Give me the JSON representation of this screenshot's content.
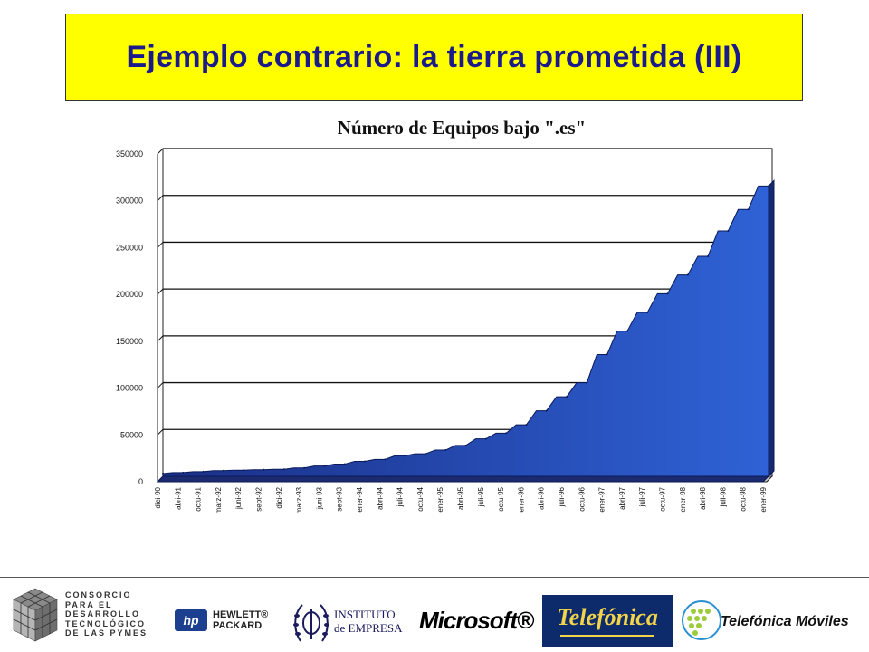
{
  "slide": {
    "title": "Ejemplo contrario: la tierra prometida (III)"
  },
  "chart_data": {
    "type": "area",
    "title": "Número de Equipos bajo \".es\"",
    "xlabel": "",
    "ylabel": "",
    "ylim": [
      0,
      350000
    ],
    "y_ticks": [
      "0",
      "50000",
      "100000",
      "150000",
      "200000",
      "250000",
      "300000",
      "350000"
    ],
    "x_tick_labels": [
      "dici-90",
      "abri-91",
      "octu-91",
      "marz-92",
      "juni-92",
      "sept-92",
      "dici-92",
      "marz-93",
      "juni-93",
      "sept-93",
      "ener-94",
      "abri-94",
      "juli-94",
      "octu-94",
      "ener-95",
      "abri-95",
      "juli-95",
      "octu-95",
      "ener-96",
      "abri-96",
      "juli-96",
      "octu-96",
      "ener-97",
      "abri-97",
      "juli-97",
      "octu-97",
      "ener-98",
      "abri-98",
      "juli-98",
      "octu-98",
      "ener-99"
    ],
    "values": [
      3000,
      4000,
      5000,
      6000,
      6500,
      7000,
      7500,
      9000,
      11000,
      13000,
      16000,
      18000,
      22000,
      24000,
      28000,
      33000,
      40000,
      46000,
      55000,
      70000,
      85000,
      100000,
      130000,
      155000,
      175000,
      195000,
      215000,
      235000,
      262000,
      285000,
      310000
    ],
    "grid": true,
    "fill_color": "#2f62d6"
  },
  "footer": {
    "consorcio_lines": [
      "CONSORCIO",
      "PARA  EL",
      "DESARROLLO",
      "TECNOLÓGICO",
      "DE LAS PYMES"
    ],
    "hp_mark": "hp",
    "hp_lines": [
      "HEWLETT®",
      "PACKARD"
    ],
    "ie_lines": [
      "INSTITUTO",
      "de EMPRESA"
    ],
    "microsoft": "Microsoft®",
    "telefonica": "Telefónica",
    "telefonica_moviles": "Telefónica Móviles"
  }
}
